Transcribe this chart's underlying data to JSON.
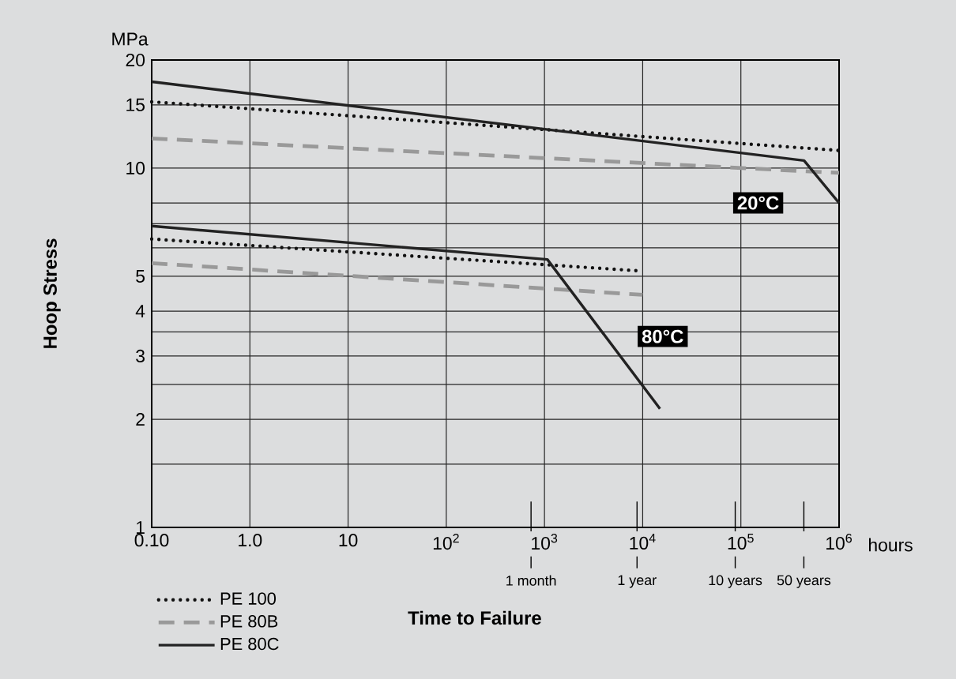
{
  "chart_data": {
    "type": "line",
    "xlabel": "Time to Failure",
    "ylabel": "Hoop Stress",
    "log": "xy",
    "grid": true,
    "legend": "bottom left",
    "xlim": [
      0.1,
      1000000
    ],
    "ylim": [
      1,
      20
    ],
    "xticks": [
      {
        "value": 0.1,
        "label": "0.10"
      },
      {
        "value": 1,
        "label": "1.0"
      },
      10,
      {
        "value": 100,
        "label": "10$^{2}$"
      },
      {
        "value": 1000,
        "label": "10$^{3}$"
      },
      {
        "value": 10000,
        "label": "10$^{4}$"
      },
      {
        "value": 100000,
        "label": "10$^{5}$"
      },
      {
        "value": 1000000,
        "label": "10$^{6}$"
      }
    ],
    "yticks": [
      1,
      {
        "value": 1.5,
        "label": null
      },
      2,
      {
        "value": 2.5,
        "label": null
      },
      3,
      {
        "value": 3.5,
        "label": null
      },
      4,
      5,
      {
        "value": 6,
        "label": null
      },
      {
        "value": 7,
        "label": null
      },
      {
        "value": 8,
        "label": null
      },
      10,
      15,
      20
    ],
    "series": [
      {
        "name": "PE 100",
        "color": "#111111",
        "line_style": "dotted",
        "x": [
          0.1,
          1000000
        ],
        "values": [
          15.3,
          11.2
        ]
      },
      {
        "name": "PE 80B",
        "color": "#999999",
        "line_style": "dashed",
        "x": [
          0.1,
          1000000
        ],
        "values": [
          12.1,
          9.7
        ]
      },
      {
        "name": "PE 80C",
        "color": "#222222",
        "line_style": "solid",
        "x": [
          0.1,
          440000,
          1000000
        ],
        "values": [
          17.4,
          10.5,
          8.0
        ]
      },
      {
        "color": "#111111",
        "line_style": "dotted",
        "x": [
          0.1,
          10000
        ],
        "values": [
          6.35,
          5.17
        ]
      },
      {
        "color": "#999999",
        "line_style": "dashed",
        "x": [
          0.1,
          10000
        ],
        "values": [
          5.44,
          4.44
        ]
      },
      {
        "color": "#222222",
        "line_style": "solid",
        "x": [
          0.1,
          1070,
          15000
        ],
        "values": [
          6.9,
          5.57,
          2.14
        ]
      }
    ],
    "ref_lines": [
      {
        "axis": "x",
        "value": 730,
        "label": "1 month"
      },
      {
        "axis": "x",
        "value": 8760,
        "label": "1 year"
      },
      {
        "axis": "x",
        "value": 87600,
        "label": "10 years"
      },
      {
        "axis": "x",
        "value": 438000,
        "label": "50 years"
      }
    ],
    "annotations": [
      "MPa",
      "hours",
      {
        "text": "20°C",
        "x": 150000,
        "y": 8.0
      },
      {
        "text": "80°C",
        "x": 16000,
        "y": 3.4
      }
    ]
  }
}
